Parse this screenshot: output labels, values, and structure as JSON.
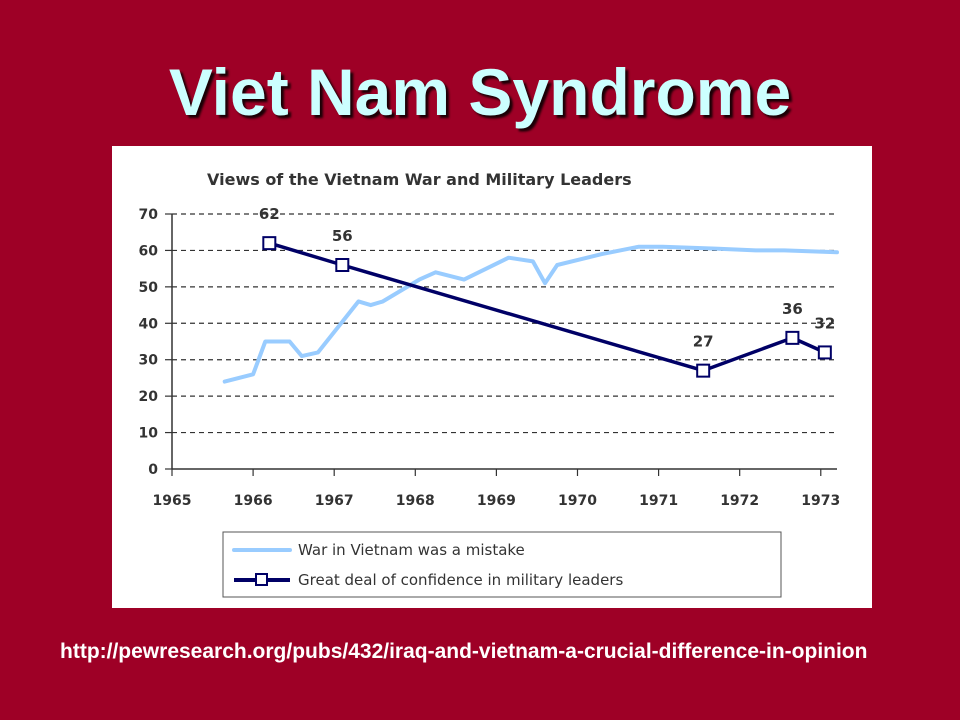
{
  "slide": {
    "title": "Viet Nam Syndrome",
    "source_url": "http://pewresearch.org/pubs/432/iraq-and-vietnam-a-crucial-difference-in-opinion"
  },
  "colors": {
    "background": "#9e0026",
    "title": "#ccffff",
    "series_mistake": "#99ccff",
    "series_confidence": "#000066"
  },
  "chart_data": {
    "type": "line",
    "title": "Views of the Vietnam War and Military Leaders",
    "xlabel": "",
    "ylabel": "",
    "xlim": [
      1965,
      1973.2
    ],
    "ylim": [
      0,
      70
    ],
    "x_ticks": [
      "1965",
      "1966",
      "1967",
      "1968",
      "1969",
      "1970",
      "1971",
      "1972",
      "1973"
    ],
    "y_ticks": [
      "0",
      "10",
      "20",
      "30",
      "40",
      "50",
      "60",
      "70"
    ],
    "grid": "horizontal dashed",
    "legend_position": "bottom",
    "series": [
      {
        "name": "War in Vietnam was a mistake",
        "color": "#99ccff",
        "marker": "none",
        "points": [
          [
            1965.65,
            24
          ],
          [
            1966.0,
            26
          ],
          [
            1966.15,
            35
          ],
          [
            1966.45,
            35
          ],
          [
            1966.6,
            31
          ],
          [
            1966.8,
            32
          ],
          [
            1967.3,
            46
          ],
          [
            1967.45,
            45
          ],
          [
            1967.6,
            46
          ],
          [
            1968.05,
            52
          ],
          [
            1968.25,
            54
          ],
          [
            1968.6,
            52
          ],
          [
            1969.15,
            58
          ],
          [
            1969.45,
            57
          ],
          [
            1969.6,
            51
          ],
          [
            1969.75,
            56
          ],
          [
            1970.3,
            59
          ],
          [
            1970.75,
            61
          ],
          [
            1971.05,
            61
          ],
          [
            1971.7,
            60.5
          ],
          [
            1972.2,
            60
          ],
          [
            1972.55,
            60
          ],
          [
            1973.2,
            59.5
          ]
        ]
      },
      {
        "name": "Great deal of confidence in military leaders",
        "color": "#000066",
        "marker": "square",
        "points": [
          [
            1966.2,
            62
          ],
          [
            1967.1,
            56
          ],
          [
            1971.55,
            27
          ],
          [
            1972.65,
            36
          ],
          [
            1973.05,
            32
          ]
        ],
        "labels": [
          "62",
          "56",
          "27",
          "36",
          "32"
        ]
      }
    ]
  }
}
